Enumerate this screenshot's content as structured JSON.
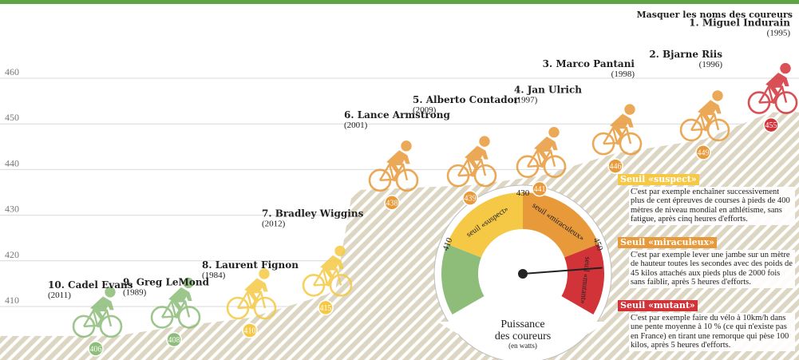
{
  "toggle_label": "Masquer les noms des coureurs",
  "colors": {
    "green": "#8dbd79",
    "yellow": "#f5c945",
    "orange": "#e8993a",
    "red": "#d23339",
    "top_line": "#5fa347",
    "hatch_bg": "#dcd6c2",
    "hatch_line": "#ffffff"
  },
  "chart_data": {
    "type": "scatter",
    "title": "",
    "ylabel": "Puissance des coureurs (en watts)",
    "ylim": [
      403,
      463
    ],
    "yticks": [
      410,
      420,
      430,
      440,
      450,
      460
    ],
    "riders": [
      {
        "rank": "10.",
        "name": "Cadel Evans",
        "year": "(2011)",
        "watts": 406,
        "color": "green"
      },
      {
        "rank": "9.",
        "name": "Greg LeMond",
        "year": "(1989)",
        "watts": 408,
        "color": "green"
      },
      {
        "rank": "8.",
        "name": "Laurent Fignon",
        "year": "(1984)",
        "watts": 410,
        "color": "yellow"
      },
      {
        "rank": "7.",
        "name": "Bradley Wiggins",
        "year": "(2012)",
        "watts": 415,
        "color": "yellow"
      },
      {
        "rank": "6.",
        "name": "Lance Armstrong",
        "year": "(2001)",
        "watts": 438,
        "color": "orange"
      },
      {
        "rank": "5.",
        "name": "Alberto Contador",
        "year": "(2009)",
        "watts": 439,
        "color": "orange"
      },
      {
        "rank": "4.",
        "name": "Jan Ulrich",
        "year": "(1997)",
        "watts": 441,
        "color": "orange"
      },
      {
        "rank": "3.",
        "name": "Marco Pantani",
        "year": "(1998)",
        "watts": 446,
        "color": "orange"
      },
      {
        "rank": "2.",
        "name": "Bjarne Riis",
        "year": "(1996)",
        "watts": 449,
        "color": "orange"
      },
      {
        "rank": "1.",
        "name": "Miguel Indurain",
        "year": "(1995)",
        "watts": 455,
        "color": "red"
      }
    ],
    "gauge": {
      "title_line1": "Puissance",
      "title_line2": "des coureurs",
      "unit": "(en watts)",
      "ticks": [
        "410",
        "430",
        "450"
      ],
      "zone_labels": [
        "seuil «suspect»",
        "seuil «miraculeux»",
        "seuil «mutant»"
      ]
    }
  },
  "legend": [
    {
      "tag": "Seuil «suspect»",
      "color": "yellow",
      "text": "C'est par exemple enchaîner successivement plus de cent épreuves de courses à pieds de 400 mètres de niveau mondial en athlétisme, sans fatigue, après cinq heures d'efforts."
    },
    {
      "tag": "Seuil «miraculeux»",
      "color": "orange",
      "text": "C'est par exemple lever une jambe sur un mètre de hauteur toutes les secondes avec des poids de 45 kilos attachés aux pieds plus de 2000 fois sans faiblir, après 5 heures d'efforts."
    },
    {
      "tag": "Seuil «mutant»",
      "color": "red",
      "text": "C'est par exemple faire du vélo à 10km/h dans une pente moyenne à 10 % (ce qui n'existe pas en France) en tirant une remorque qui pèse 100 kilos, après 5 heures d'efforts."
    }
  ]
}
